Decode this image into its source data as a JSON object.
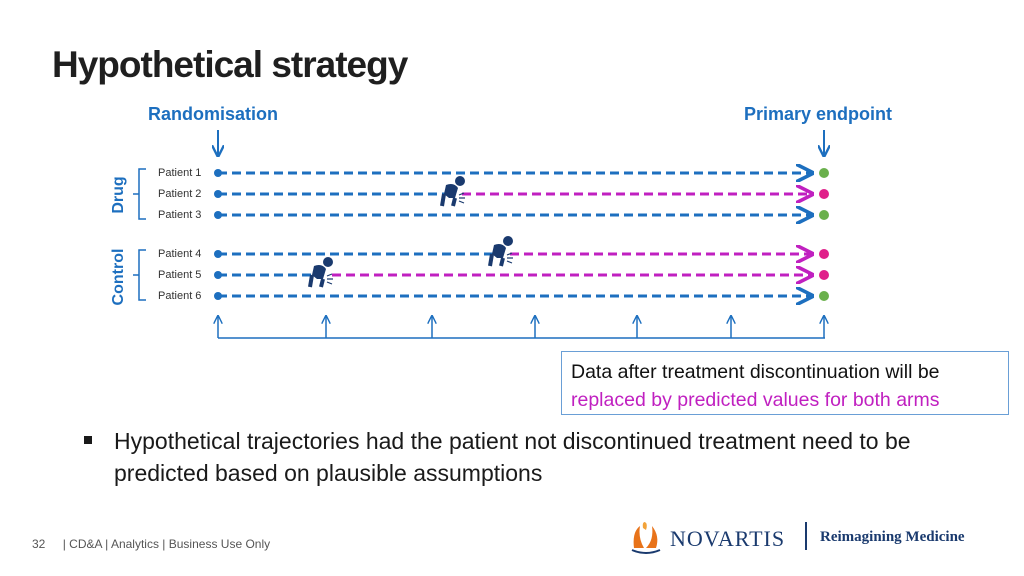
{
  "title": "Hypothetical strategy",
  "labels": {
    "randomisation": "Randomisation",
    "primary_endpoint": "Primary endpoint"
  },
  "arms": [
    {
      "name": "Drug",
      "patients": [
        "Patient 1",
        "Patient 2",
        "Patient 3"
      ]
    },
    {
      "name": "Control",
      "patients": [
        "Patient 4",
        "Patient 5",
        "Patient 6"
      ]
    }
  ],
  "note": {
    "line1": "Data after treatment discontinuation will be",
    "line2": "replaced by predicted values for both arms"
  },
  "bullet": "Hypothetical trajectories had the patient not discontinued treatment need to be predicted based on plausible assumptions",
  "footer": {
    "page": "32",
    "text": "| CD&A | Analytics | Business Use Only"
  },
  "logo": {
    "brand": "NOVARTIS",
    "tagline": "Reimagining Medicine"
  },
  "colors": {
    "blue": "#1d6fbf",
    "magenta": "#c020c0",
    "green": "#6ab04c",
    "dark": "#1a3a6e"
  }
}
